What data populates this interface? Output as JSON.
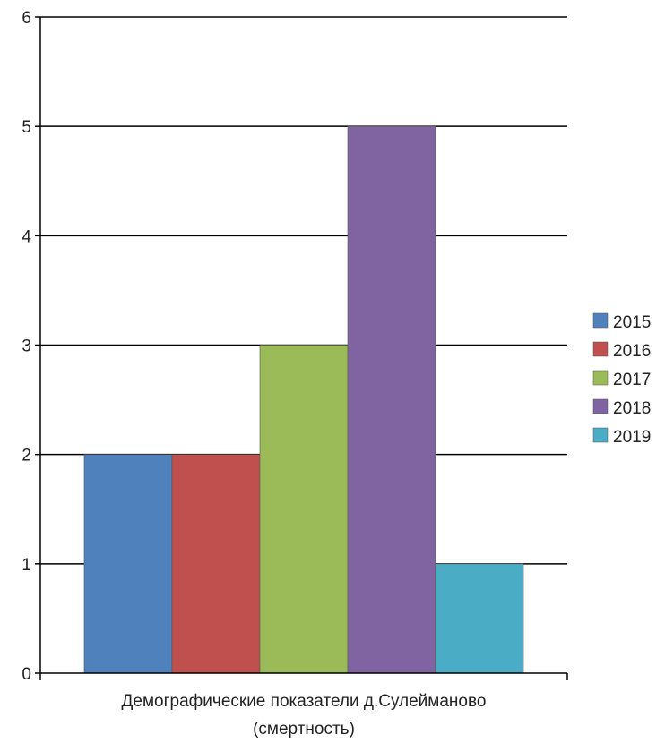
{
  "chart_data": {
    "type": "bar",
    "categories": [
      "Демографические показатели д.Сулейманово (смертность)"
    ],
    "category_label_lines": [
      "Демографические показатели д.Сулейманово",
      "(смертность)"
    ],
    "series": [
      {
        "name": "2015",
        "values": [
          2
        ],
        "color": "#4F81BD"
      },
      {
        "name": "2016",
        "values": [
          2
        ],
        "color": "#C0504D"
      },
      {
        "name": "2017",
        "values": [
          3
        ],
        "color": "#9BBB59"
      },
      {
        "name": "2018",
        "values": [
          5
        ],
        "color": "#8064A2"
      },
      {
        "name": "2019",
        "values": [
          1
        ],
        "color": "#4BACC6"
      }
    ],
    "yticks": [
      "0",
      "1",
      "2",
      "3",
      "4",
      "5",
      "6"
    ],
    "ylim": [
      0,
      6
    ],
    "title": "",
    "xlabel": "",
    "ylabel": "",
    "grid": true,
    "legend": "right"
  }
}
